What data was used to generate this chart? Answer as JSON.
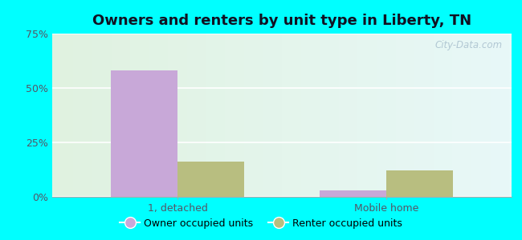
{
  "title": "Owners and renters by unit type in Liberty, TN",
  "categories": [
    "1, detached",
    "Mobile home"
  ],
  "owner_values": [
    58.0,
    3.0
  ],
  "renter_values": [
    16.0,
    12.0
  ],
  "owner_color": "#c8a8d8",
  "renter_color": "#b8be80",
  "ylim": [
    0,
    75
  ],
  "yticks": [
    0,
    25,
    50,
    75
  ],
  "yticklabels": [
    "0%",
    "25%",
    "50%",
    "75%"
  ],
  "bar_width": 0.32,
  "title_fontsize": 13,
  "tick_fontsize": 9,
  "legend_fontsize": 9,
  "watermark": "City-Data.com",
  "outer_bg": "#00ffff",
  "plot_bg_left": "#e8f5e8",
  "plot_bg_right": "#f0faf8"
}
